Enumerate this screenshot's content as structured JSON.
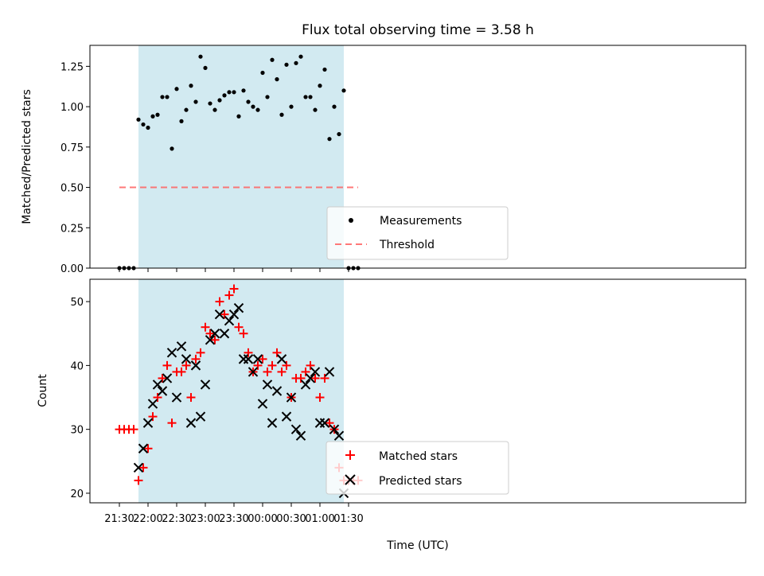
{
  "chart_data": [
    {
      "type": "scatter",
      "title": "Flux total observing time = 3.58 h",
      "xlabel": "",
      "ylabel": "Matched/Predicted stars",
      "ylim": [
        0.0,
        1.38
      ],
      "yticks": [
        0.0,
        0.25,
        0.5,
        0.75,
        1.0,
        1.25
      ],
      "ytick_labels": [
        "0.00",
        "0.25",
        "0.50",
        "0.75",
        "1.00",
        "1.25"
      ],
      "legend": {
        "placement": "lower center",
        "entries": [
          "Measurements",
          "Threshold"
        ]
      },
      "observing_window": {
        "start": "21:50",
        "end": "01:25",
        "color": "#add8e6"
      },
      "threshold": {
        "value": 0.5,
        "from": "21:30",
        "to": "01:40",
        "color": "#ff6060",
        "style": "dashed"
      },
      "series": [
        {
          "name": "Measurements",
          "marker": "dot",
          "color": "#000000",
          "x": [
            "21:30",
            "21:35",
            "21:40",
            "21:45",
            "21:50",
            "21:55",
            "22:00",
            "22:05",
            "22:10",
            "22:15",
            "22:20",
            "22:25",
            "22:30",
            "22:35",
            "22:40",
            "22:45",
            "22:50",
            "22:55",
            "23:00",
            "23:05",
            "23:10",
            "23:15",
            "23:20",
            "23:25",
            "23:30",
            "23:35",
            "23:40",
            "23:45",
            "23:50",
            "23:55",
            "00:00",
            "00:05",
            "00:10",
            "00:15",
            "00:20",
            "00:25",
            "00:30",
            "00:35",
            "00:40",
            "00:45",
            "00:50",
            "00:55",
            "01:00",
            "01:05",
            "01:10",
            "01:15",
            "01:20",
            "01:25",
            "01:30",
            "01:35",
            "01:40"
          ],
          "y": [
            0.0,
            0.0,
            0.0,
            0.0,
            0.92,
            0.89,
            0.87,
            0.94,
            0.95,
            1.06,
            1.06,
            0.74,
            1.11,
            0.91,
            0.98,
            1.13,
            1.03,
            1.31,
            1.24,
            1.02,
            0.98,
            1.04,
            1.07,
            1.09,
            1.09,
            0.94,
            1.1,
            1.03,
            1.0,
            0.98,
            1.21,
            1.06,
            1.29,
            1.17,
            0.95,
            1.26,
            1.0,
            1.27,
            1.31,
            1.06,
            1.06,
            0.98,
            1.13,
            1.23,
            0.8,
            1.0,
            0.83,
            1.1,
            0.0,
            0.0,
            0.0
          ]
        }
      ]
    },
    {
      "type": "scatter",
      "title": "",
      "xlabel": "Time (UTC)",
      "ylabel": "Count",
      "ylim": [
        18.5,
        53.5
      ],
      "yticks": [
        20,
        30,
        40,
        50
      ],
      "ytick_labels": [
        "20",
        "30",
        "40",
        "50"
      ],
      "xticks": [
        "21:30",
        "22:00",
        "22:30",
        "23:00",
        "23:30",
        "00:00",
        "00:30",
        "01:00",
        "01:30"
      ],
      "legend": {
        "placement": "lower center",
        "entries": [
          "Matched stars",
          "Predicted stars"
        ]
      },
      "observing_window": {
        "start": "21:50",
        "end": "01:25",
        "color": "#add8e6"
      },
      "series": [
        {
          "name": "Matched stars",
          "marker": "plus",
          "color": "#ff0000",
          "x": [
            "21:30",
            "21:35",
            "21:40",
            "21:45",
            "21:50",
            "21:55",
            "22:00",
            "22:05",
            "22:10",
            "22:15",
            "22:20",
            "22:25",
            "22:30",
            "22:35",
            "22:40",
            "22:45",
            "22:50",
            "22:55",
            "23:00",
            "23:05",
            "23:10",
            "23:15",
            "23:20",
            "23:25",
            "23:30",
            "23:35",
            "23:40",
            "23:45",
            "23:50",
            "23:55",
            "00:00",
            "00:05",
            "00:10",
            "00:15",
            "00:20",
            "00:25",
            "00:30",
            "00:35",
            "00:40",
            "00:45",
            "00:50",
            "00:55",
            "01:00",
            "01:05",
            "01:10",
            "01:15",
            "01:20",
            "01:25",
            "01:30",
            "01:35",
            "01:40"
          ],
          "y": [
            30,
            30,
            30,
            30,
            22,
            24,
            27,
            32,
            35,
            38,
            40,
            31,
            39,
            39,
            40,
            35,
            41,
            42,
            46,
            45,
            44,
            50,
            48,
            51,
            52,
            46,
            45,
            42,
            39,
            40,
            41,
            39,
            40,
            42,
            39,
            40,
            35,
            38,
            38,
            39,
            40,
            38,
            35,
            38,
            31,
            30,
            24,
            22,
            22,
            22,
            22
          ]
        },
        {
          "name": "Predicted stars",
          "marker": "x",
          "color": "#000000",
          "x": [
            "21:50",
            "21:55",
            "22:00",
            "22:05",
            "22:10",
            "22:15",
            "22:20",
            "22:25",
            "22:30",
            "22:35",
            "22:40",
            "22:45",
            "22:50",
            "22:55",
            "23:00",
            "23:05",
            "23:10",
            "23:15",
            "23:20",
            "23:25",
            "23:30",
            "23:35",
            "23:40",
            "23:45",
            "23:50",
            "23:55",
            "00:00",
            "00:05",
            "00:10",
            "00:15",
            "00:20",
            "00:25",
            "00:30",
            "00:35",
            "00:40",
            "00:45",
            "00:50",
            "00:55",
            "01:00",
            "01:05",
            "01:10",
            "01:15",
            "01:20",
            "01:25"
          ],
          "y": [
            24,
            27,
            31,
            34,
            37,
            36,
            38,
            42,
            35,
            43,
            41,
            31,
            40,
            32,
            37,
            44,
            45,
            48,
            45,
            47,
            48,
            49,
            41,
            41,
            39,
            41,
            34,
            37,
            31,
            36,
            41,
            32,
            35,
            30,
            29,
            37,
            38,
            39,
            31,
            31,
            39,
            30,
            29,
            20
          ]
        }
      ]
    }
  ]
}
